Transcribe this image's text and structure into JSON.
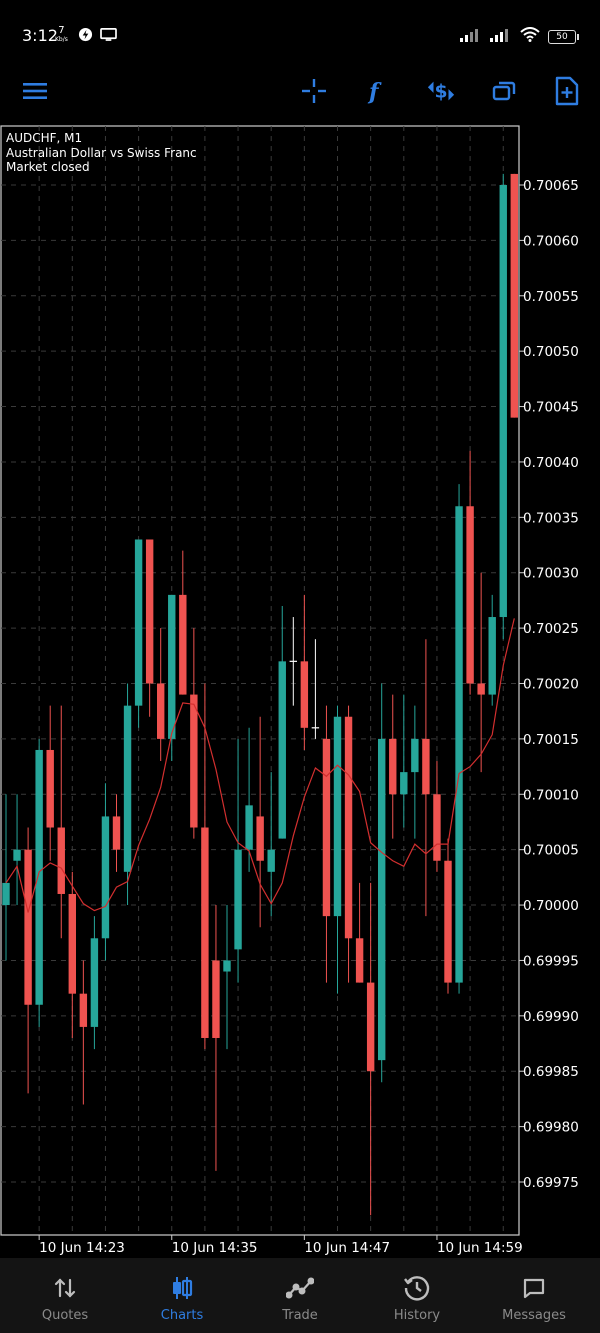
{
  "status_bar": {
    "time": "3:12",
    "net_speed_value": "7",
    "net_speed_unit": "Kb/s",
    "battery": "50",
    "icons": [
      "data-saver-icon",
      "screen-cast-icon",
      "signal-icon",
      "signal-icon",
      "wifi-icon",
      "battery-icon"
    ]
  },
  "toolbar": {
    "buttons": [
      "menu-icon",
      "crosshair-icon",
      "indicators-icon",
      "currency-exchange-icon",
      "windows-icon",
      "new-order-icon"
    ],
    "accent_color": "#2f7de1"
  },
  "chart_info": {
    "symbol": "AUDCHF, M1",
    "description": "Australian Dollar vs Swiss Franc",
    "status": "Market closed"
  },
  "chart_data": {
    "type": "candlestick",
    "title": "AUDCHF, M1",
    "subtitle": "Australian Dollar vs Swiss Franc",
    "ylim": [
      0.6997,
      0.70068
    ],
    "y_ticks": [
      "0.70065",
      "0.70060",
      "0.70055",
      "0.70050",
      "0.70045",
      "0.70040",
      "0.70035",
      "0.70030",
      "0.70025",
      "0.70020",
      "0.70015",
      "0.70010",
      "0.70005",
      "0.70000",
      "0.69995",
      "0.69990",
      "0.69985",
      "0.69980",
      "0.69975"
    ],
    "x_tick_labels": [
      "10 Jun 14:23",
      "10 Jun 14:35",
      "10 Jun 14:47",
      "10 Jun 14:59"
    ],
    "x_tick_indices": [
      3,
      15,
      27,
      39
    ],
    "up_color": "#26a69a",
    "down_color": "#ef5350",
    "ma_color": "#d32f2f",
    "grid": true,
    "candles": [
      {
        "o": 0.7,
        "h": 0.7001,
        "l": 0.69995,
        "c": 0.70002
      },
      {
        "o": 0.70004,
        "h": 0.7001,
        "l": 0.7,
        "c": 0.70005
      },
      {
        "o": 0.70005,
        "h": 0.70007,
        "l": 0.69983,
        "c": 0.69991
      },
      {
        "o": 0.69991,
        "h": 0.70015,
        "l": 0.69989,
        "c": 0.70014
      },
      {
        "o": 0.70014,
        "h": 0.70018,
        "l": 0.70004,
        "c": 0.70007
      },
      {
        "o": 0.70007,
        "h": 0.70018,
        "l": 0.69997,
        "c": 0.70001
      },
      {
        "o": 0.70001,
        "h": 0.70003,
        "l": 0.69988,
        "c": 0.69992
      },
      {
        "o": 0.69992,
        "h": 0.69995,
        "l": 0.69982,
        "c": 0.69989
      },
      {
        "o": 0.69989,
        "h": 0.69999,
        "l": 0.69987,
        "c": 0.69997
      },
      {
        "o": 0.69997,
        "h": 0.70011,
        "l": 0.69995,
        "c": 0.70008
      },
      {
        "o": 0.70008,
        "h": 0.7001,
        "l": 0.70003,
        "c": 0.70005
      },
      {
        "o": 0.70003,
        "h": 0.7002,
        "l": 0.7,
        "c": 0.70018
      },
      {
        "o": 0.70018,
        "h": 0.70033,
        "l": 0.70016,
        "c": 0.70033
      },
      {
        "o": 0.70033,
        "h": 0.70033,
        "l": 0.70017,
        "c": 0.7002
      },
      {
        "o": 0.7002,
        "h": 0.70025,
        "l": 0.70013,
        "c": 0.70015
      },
      {
        "o": 0.70015,
        "h": 0.70028,
        "l": 0.70013,
        "c": 0.70028
      },
      {
        "o": 0.70028,
        "h": 0.70032,
        "l": 0.70019,
        "c": 0.70019
      },
      {
        "o": 0.70019,
        "h": 0.70025,
        "l": 0.70006,
        "c": 0.70007
      },
      {
        "o": 0.70007,
        "h": 0.7002,
        "l": 0.69987,
        "c": 0.69988
      },
      {
        "o": 0.69995,
        "h": 0.7,
        "l": 0.69976,
        "c": 0.69988
      },
      {
        "o": 0.69994,
        "h": 0.7,
        "l": 0.69987,
        "c": 0.69995
      },
      {
        "o": 0.69996,
        "h": 0.70015,
        "l": 0.69993,
        "c": 0.70005
      },
      {
        "o": 0.70005,
        "h": 0.70016,
        "l": 0.70003,
        "c": 0.70009
      },
      {
        "o": 0.70008,
        "h": 0.70017,
        "l": 0.69998,
        "c": 0.70004
      },
      {
        "o": 0.70003,
        "h": 0.70012,
        "l": 0.69999,
        "c": 0.70005
      },
      {
        "o": 0.70006,
        "h": 0.70027,
        "l": 0.70006,
        "c": 0.70022
      },
      {
        "o": 0.70022,
        "h": 0.70026,
        "l": 0.70018,
        "c": 0.70022
      },
      {
        "o": 0.70022,
        "h": 0.70028,
        "l": 0.70014,
        "c": 0.70016
      },
      {
        "o": 0.70016,
        "h": 0.70024,
        "l": 0.70015,
        "c": 0.70016
      },
      {
        "o": 0.70015,
        "h": 0.70018,
        "l": 0.69993,
        "c": 0.69999
      },
      {
        "o": 0.69999,
        "h": 0.70018,
        "l": 0.69992,
        "c": 0.70017
      },
      {
        "o": 0.70017,
        "h": 0.70018,
        "l": 0.69993,
        "c": 0.69997
      },
      {
        "o": 0.69997,
        "h": 0.70002,
        "l": 0.69993,
        "c": 0.69993
      },
      {
        "o": 0.69993,
        "h": 0.70002,
        "l": 0.69972,
        "c": 0.69985
      },
      {
        "o": 0.69986,
        "h": 0.7002,
        "l": 0.69984,
        "c": 0.70015
      },
      {
        "o": 0.70015,
        "h": 0.70019,
        "l": 0.70006,
        "c": 0.7001
      },
      {
        "o": 0.7001,
        "h": 0.70019,
        "l": 0.70007,
        "c": 0.70012
      },
      {
        "o": 0.70012,
        "h": 0.70018,
        "l": 0.70006,
        "c": 0.70015
      },
      {
        "o": 0.70015,
        "h": 0.70024,
        "l": 0.69999,
        "c": 0.7001
      },
      {
        "o": 0.7001,
        "h": 0.70013,
        "l": 0.70003,
        "c": 0.70004
      },
      {
        "o": 0.70004,
        "h": 0.70006,
        "l": 0.69992,
        "c": 0.69993
      },
      {
        "o": 0.69993,
        "h": 0.70038,
        "l": 0.69992,
        "c": 0.70036
      },
      {
        "o": 0.70036,
        "h": 0.70041,
        "l": 0.70019,
        "c": 0.7002
      },
      {
        "o": 0.7002,
        "h": 0.7003,
        "l": 0.70012,
        "c": 0.70019
      },
      {
        "o": 0.70019,
        "h": 0.70028,
        "l": 0.70018,
        "c": 0.70026
      },
      {
        "o": 0.70026,
        "h": 0.70066,
        "l": 0.70024,
        "c": 0.70065
      },
      {
        "o": 0.70066,
        "h": 0.70066,
        "l": 0.70044,
        "c": 0.70044
      }
    ],
    "ma_period": 8
  },
  "bottom_nav": {
    "items": [
      {
        "label": "Quotes",
        "icon": "quotes-icon"
      },
      {
        "label": "Charts",
        "icon": "charts-icon"
      },
      {
        "label": "Trade",
        "icon": "trade-icon"
      },
      {
        "label": "History",
        "icon": "history-icon"
      },
      {
        "label": "Messages",
        "icon": "messages-icon"
      }
    ],
    "active": "Charts",
    "active_color": "#2f7de1",
    "inactive_color": "#8a8a8a"
  }
}
